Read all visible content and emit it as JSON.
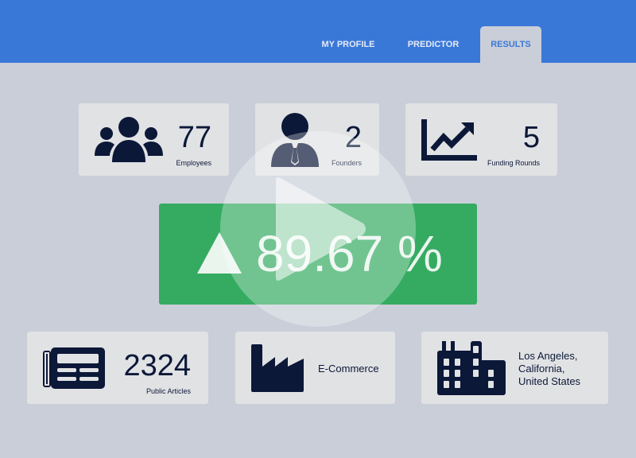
{
  "nav": {
    "tabs": [
      {
        "label": "MY PROFILE"
      },
      {
        "label": "PREDICTOR"
      },
      {
        "label": "RESULTS",
        "active": true
      }
    ]
  },
  "stats": {
    "employees": {
      "value": "77",
      "label": "Employees",
      "icon": "group-icon"
    },
    "founders": {
      "value": "2",
      "label": "Founders",
      "icon": "businessman-icon"
    },
    "funding": {
      "value": "5",
      "label": "Funding Rounds",
      "icon": "line-chart-icon"
    },
    "articles": {
      "value": "2324",
      "label": "Public Articles",
      "icon": "newspaper-icon"
    },
    "industry": {
      "value": "E-Commerce",
      "icon": "factory-icon"
    },
    "location": {
      "lines": [
        "Los Angeles,",
        "California,",
        "United States"
      ],
      "icon": "building-icon"
    }
  },
  "result": {
    "value": "89.67 %",
    "trend": "up",
    "color": "#34ab61"
  },
  "video": {
    "icon": "play-icon"
  },
  "colors": {
    "header": "#3a78d8",
    "background": "#c9ced8",
    "card": "#e1e2e4",
    "icon": "#0c1838"
  }
}
